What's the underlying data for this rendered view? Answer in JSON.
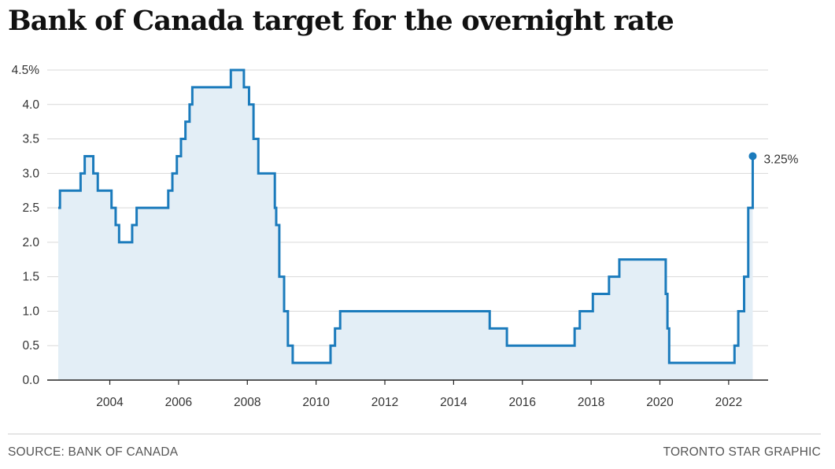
{
  "title": "Bank of Canada target for the overnight rate",
  "footer": {
    "source": "SOURCE: BANK OF CANADA",
    "credit": "TORONTO STAR GRAPHIC"
  },
  "colors": {
    "line": "#1b7bbc",
    "area": "#e3eef6",
    "grid": "#d9d9d9",
    "axis": "#222222",
    "text": "#333333"
  },
  "chart_data": {
    "type": "area",
    "xlim": [
      2002.5,
      2022.85
    ],
    "ylim": [
      0,
      4.5
    ],
    "y_ticks": [
      {
        "value": 0.0,
        "label": "0.0"
      },
      {
        "value": 0.5,
        "label": "0.5"
      },
      {
        "value": 1.0,
        "label": "1.0"
      },
      {
        "value": 1.5,
        "label": "1.5"
      },
      {
        "value": 2.0,
        "label": "2.0"
      },
      {
        "value": 2.5,
        "label": "2.5"
      },
      {
        "value": 3.0,
        "label": "3.0"
      },
      {
        "value": 3.5,
        "label": "3.5"
      },
      {
        "value": 4.0,
        "label": "4.0"
      },
      {
        "value": 4.5,
        "label": "4.5%"
      }
    ],
    "x_ticks": [
      {
        "value": 2004,
        "label": "2004"
      },
      {
        "value": 2006,
        "label": "2006"
      },
      {
        "value": 2008,
        "label": "2008"
      },
      {
        "value": 2010,
        "label": "2010"
      },
      {
        "value": 2012,
        "label": "2012"
      },
      {
        "value": 2014,
        "label": "2014"
      },
      {
        "value": 2016,
        "label": "2016"
      },
      {
        "value": 2018,
        "label": "2018"
      },
      {
        "value": 2020,
        "label": "2020"
      },
      {
        "value": 2022,
        "label": "2022"
      }
    ],
    "grid": true,
    "step": true,
    "series": [
      {
        "points": [
          [
            2002.5,
            2.5
          ],
          [
            2002.55,
            2.75
          ],
          [
            2003.15,
            3.0
          ],
          [
            2003.27,
            3.25
          ],
          [
            2003.52,
            3.0
          ],
          [
            2003.65,
            2.75
          ],
          [
            2004.05,
            2.5
          ],
          [
            2004.17,
            2.25
          ],
          [
            2004.27,
            2.0
          ],
          [
            2004.65,
            2.25
          ],
          [
            2004.78,
            2.5
          ],
          [
            2005.7,
            2.75
          ],
          [
            2005.82,
            3.0
          ],
          [
            2005.95,
            3.25
          ],
          [
            2006.07,
            3.5
          ],
          [
            2006.2,
            3.75
          ],
          [
            2006.32,
            4.0
          ],
          [
            2006.4,
            4.25
          ],
          [
            2007.52,
            4.5
          ],
          [
            2007.9,
            4.25
          ],
          [
            2008.05,
            4.0
          ],
          [
            2008.18,
            3.5
          ],
          [
            2008.32,
            3.0
          ],
          [
            2008.8,
            2.5
          ],
          [
            2008.84,
            2.25
          ],
          [
            2008.93,
            1.5
          ],
          [
            2009.07,
            1.0
          ],
          [
            2009.18,
            0.5
          ],
          [
            2009.32,
            0.25
          ],
          [
            2010.42,
            0.5
          ],
          [
            2010.55,
            0.75
          ],
          [
            2010.7,
            1.0
          ],
          [
            2015.05,
            0.75
          ],
          [
            2015.55,
            0.5
          ],
          [
            2017.52,
            0.75
          ],
          [
            2017.67,
            1.0
          ],
          [
            2018.05,
            1.25
          ],
          [
            2018.52,
            1.5
          ],
          [
            2018.82,
            1.75
          ],
          [
            2020.17,
            1.25
          ],
          [
            2020.22,
            0.75
          ],
          [
            2020.27,
            0.25
          ],
          [
            2022.17,
            0.5
          ],
          [
            2022.28,
            1.0
          ],
          [
            2022.45,
            1.5
          ],
          [
            2022.57,
            2.5
          ],
          [
            2022.7,
            3.25
          ]
        ],
        "end": 2022.7
      }
    ],
    "annotations": [
      {
        "x": 2022.7,
        "y": 3.25,
        "text": "3.25%"
      }
    ]
  }
}
